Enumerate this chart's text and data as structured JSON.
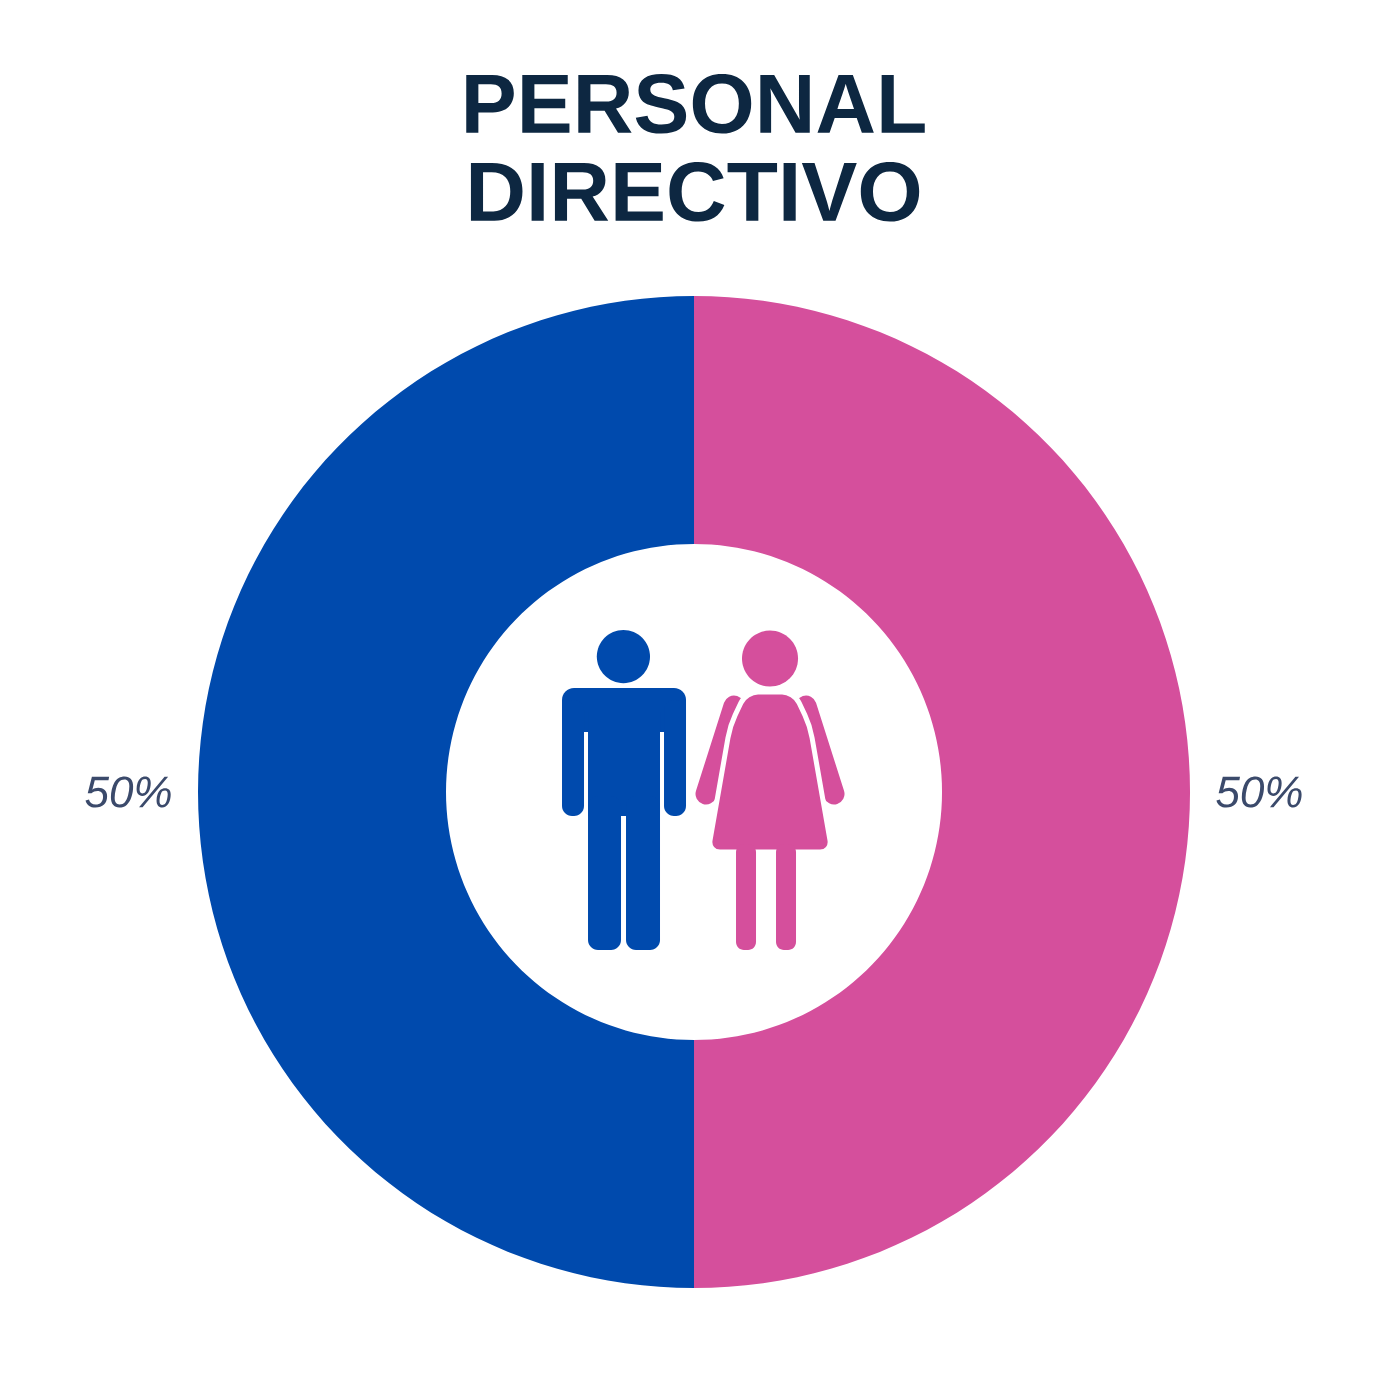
{
  "chart_data": {
    "type": "donut",
    "title": "PERSONAL DIRECTIVO",
    "categories": [
      null,
      null
    ],
    "values": [
      50,
      50
    ],
    "colors": [
      "#d54f9c",
      "#004aad"
    ],
    "value_labels": [
      "50%",
      "50%"
    ]
  }
}
